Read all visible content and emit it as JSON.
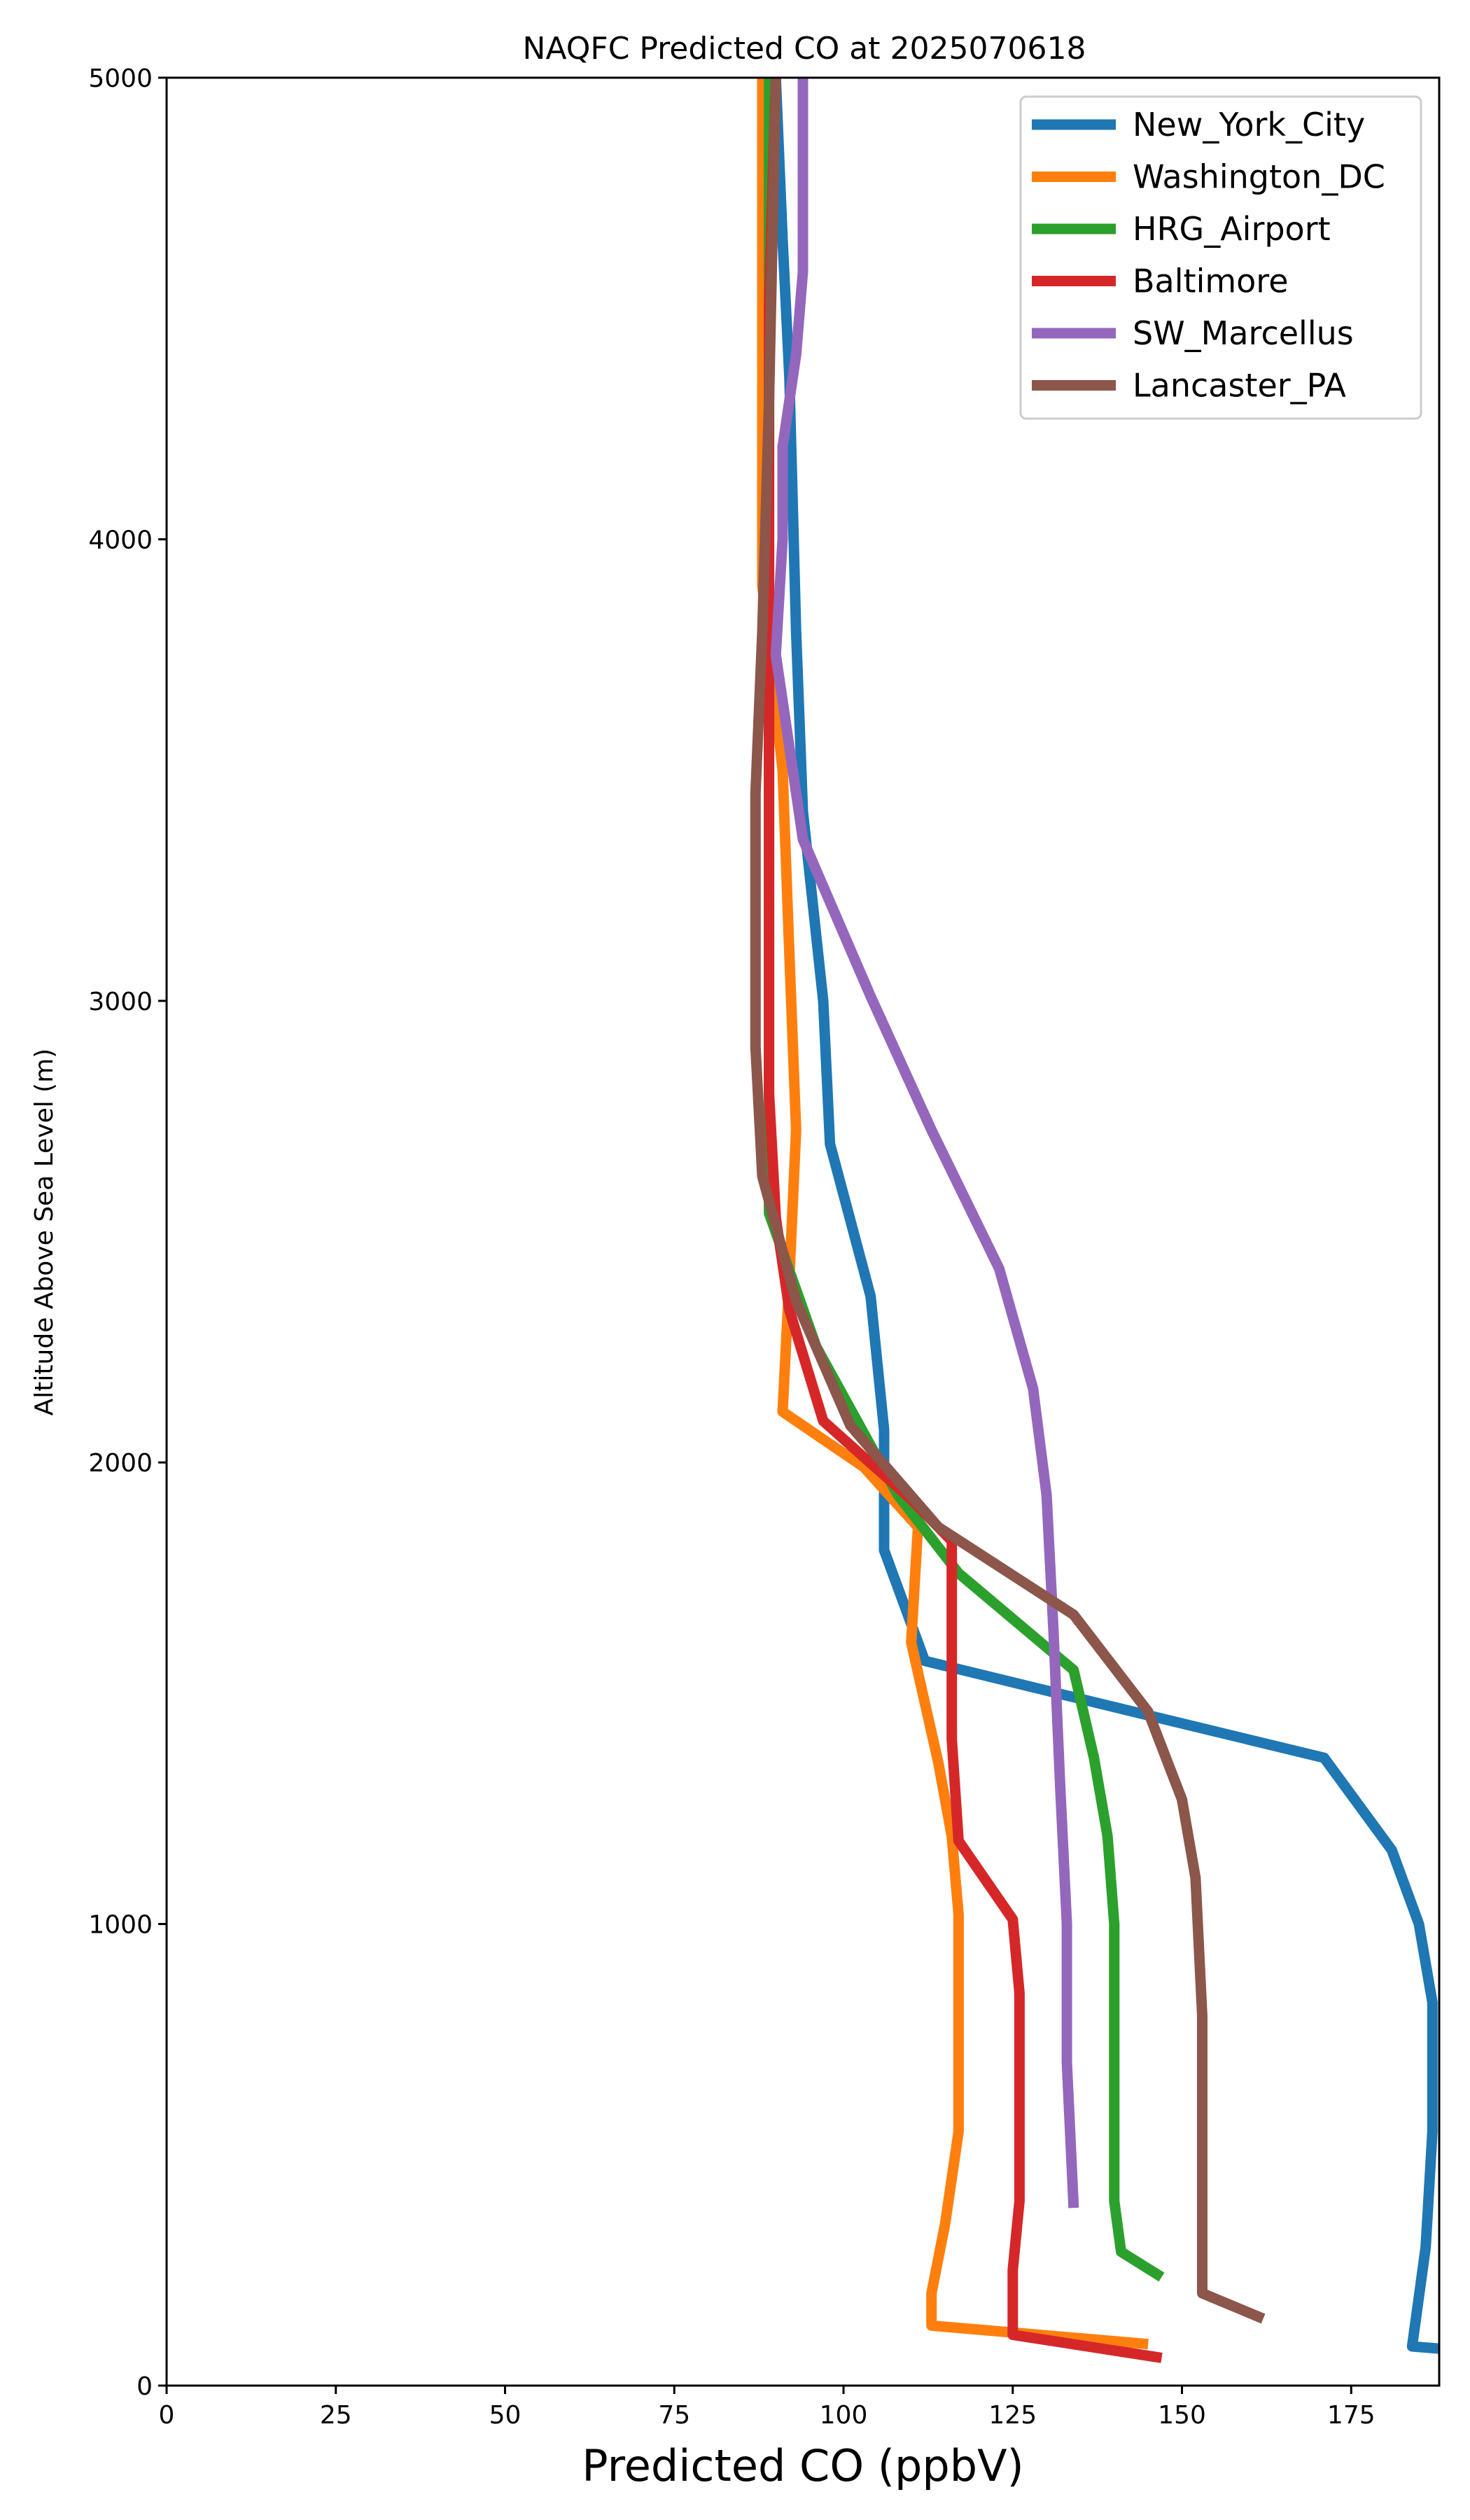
{
  "chart_data": {
    "type": "line",
    "title": "NAQFC Predicted CO at 2025070618",
    "xlabel": "Predicted CO (ppbV)",
    "ylabel": "Altitude Above Sea Level (m)",
    "xlim": [
      0,
      188
    ],
    "ylim": [
      0,
      5000
    ],
    "x_ticks": [
      "0",
      "25",
      "50",
      "75",
      "100",
      "125",
      "150",
      "175"
    ],
    "x_tick_values": [
      0,
      25,
      50,
      75,
      100,
      125,
      150,
      175
    ],
    "y_ticks": [
      "0",
      "1000",
      "2000",
      "3000",
      "4000",
      "5000"
    ],
    "y_tick_values": [
      0,
      1000,
      2000,
      3000,
      4000,
      5000
    ],
    "grid": false,
    "legend_position": "top-right",
    "series": [
      {
        "name": "New_York_City",
        "color": "#1f77b4",
        "points": [
          [
            188,
            80
          ],
          [
            184,
            85
          ],
          [
            186,
            300
          ],
          [
            187,
            550
          ],
          [
            187,
            830
          ],
          [
            185,
            1000
          ],
          [
            181,
            1160
          ],
          [
            171,
            1360
          ],
          [
            140,
            1470
          ],
          [
            112,
            1570
          ],
          [
            106,
            1810
          ],
          [
            106,
            2070
          ],
          [
            104,
            2360
          ],
          [
            98,
            2690
          ],
          [
            97,
            3000
          ],
          [
            94,
            3410
          ],
          [
            93,
            3800
          ],
          [
            92,
            4350
          ],
          [
            91,
            4650
          ],
          [
            90,
            5000
          ]
        ]
      },
      {
        "name": "Washington_DC",
        "color": "#ff7f0e",
        "points": [
          [
            145,
            90
          ],
          [
            113,
            130
          ],
          [
            113,
            200
          ],
          [
            115,
            350
          ],
          [
            117,
            550
          ],
          [
            117,
            800
          ],
          [
            117,
            1020
          ],
          [
            116,
            1190
          ],
          [
            114,
            1350
          ],
          [
            110,
            1610
          ],
          [
            111,
            1860
          ],
          [
            103,
            1990
          ],
          [
            91,
            2110
          ],
          [
            92,
            2400
          ],
          [
            93,
            2720
          ],
          [
            92,
            3100
          ],
          [
            91,
            3500
          ],
          [
            88,
            3900
          ],
          [
            88,
            4300
          ],
          [
            88,
            4700
          ],
          [
            88,
            5000
          ]
        ]
      },
      {
        "name": "HRG_Airport",
        "color": "#2ca02c",
        "points": [
          [
            147,
            235
          ],
          [
            141,
            290
          ],
          [
            140,
            400
          ],
          [
            140,
            700
          ],
          [
            140,
            1000
          ],
          [
            139,
            1190
          ],
          [
            137,
            1360
          ],
          [
            134,
            1550
          ],
          [
            117,
            1760
          ],
          [
            108,
            1930
          ],
          [
            96,
            2250
          ],
          [
            89,
            2540
          ],
          [
            89,
            3000
          ],
          [
            89,
            3500
          ],
          [
            89,
            4000
          ],
          [
            89,
            4500
          ],
          [
            89,
            5000
          ]
        ]
      },
      {
        "name": "Baltimore",
        "color": "#d62728",
        "points": [
          [
            147,
            60
          ],
          [
            125,
            110
          ],
          [
            125,
            250
          ],
          [
            126,
            400
          ],
          [
            126,
            600
          ],
          [
            126,
            850
          ],
          [
            125,
            1010
          ],
          [
            117,
            1180
          ],
          [
            116,
            1400
          ],
          [
            116,
            1600
          ],
          [
            116,
            1830
          ],
          [
            110,
            1920
          ],
          [
            97,
            2090
          ],
          [
            92,
            2330
          ],
          [
            90,
            2530
          ],
          [
            89,
            2800
          ],
          [
            89,
            3200
          ],
          [
            89,
            3600
          ],
          [
            89,
            4000
          ],
          [
            89,
            4500
          ],
          [
            90,
            5000
          ]
        ]
      },
      {
        "name": "SW_Marcellus",
        "color": "#9467bd",
        "points": [
          [
            134,
            385
          ],
          [
            133,
            700
          ],
          [
            133,
            1000
          ],
          [
            132,
            1300
          ],
          [
            131,
            1640
          ],
          [
            130,
            1930
          ],
          [
            128,
            2160
          ],
          [
            123,
            2420
          ],
          [
            113,
            2720
          ],
          [
            104,
            3010
          ],
          [
            94,
            3350
          ],
          [
            90,
            3750
          ],
          [
            91,
            4000
          ],
          [
            91,
            4200
          ],
          [
            93,
            4400
          ],
          [
            94,
            4580
          ],
          [
            94,
            5000
          ]
        ]
      },
      {
        "name": "Lancaster_PA",
        "color": "#8c564b",
        "points": [
          [
            162,
            145
          ],
          [
            153,
            200
          ],
          [
            153,
            500
          ],
          [
            153,
            800
          ],
          [
            152,
            1100
          ],
          [
            150,
            1270
          ],
          [
            145,
            1460
          ],
          [
            134,
            1670
          ],
          [
            114,
            1860
          ],
          [
            101,
            2080
          ],
          [
            93,
            2350
          ],
          [
            88,
            2620
          ],
          [
            87,
            2900
          ],
          [
            87,
            3150
          ],
          [
            87,
            3450
          ],
          [
            88,
            3800
          ],
          [
            89,
            4300
          ],
          [
            90,
            5000
          ]
        ]
      }
    ]
  }
}
